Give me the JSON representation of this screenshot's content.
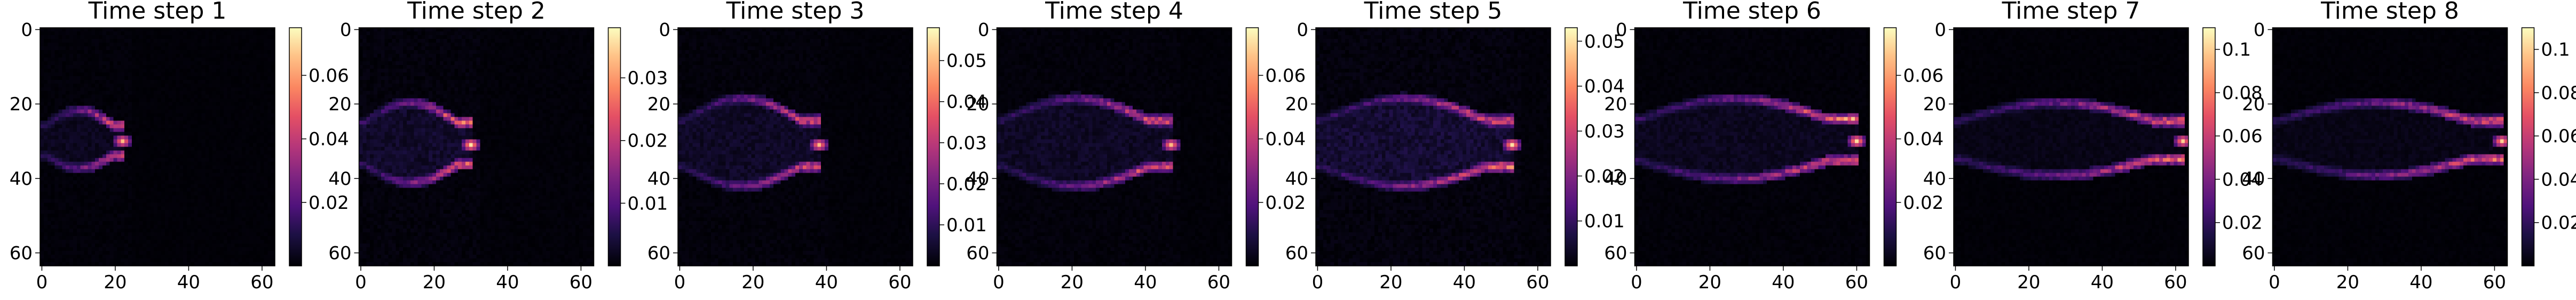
{
  "figure": {
    "background": "#ffffff",
    "colormap": "magma"
  },
  "chart_data": [
    {
      "type": "heatmap",
      "title": "Time step 1",
      "xlim": [
        0,
        63
      ],
      "ylim": [
        63,
        0
      ],
      "xticks": [
        0,
        20,
        40,
        60
      ],
      "yticks": [
        0,
        20,
        40,
        60
      ],
      "colorbar": {
        "range": [
          0,
          0.075
        ],
        "ticks": [
          0.02,
          0.04,
          0.06
        ]
      },
      "field": {
        "x_tip": 22,
        "y_center": 30,
        "spread": 8,
        "band_max": 0.065,
        "interior": 0.004
      }
    },
    {
      "type": "heatmap",
      "title": "Time step 2",
      "xlim": [
        0,
        63
      ],
      "ylim": [
        63,
        0
      ],
      "xticks": [
        0,
        20,
        40,
        60
      ],
      "yticks": [
        0,
        20,
        40,
        60
      ],
      "colorbar": {
        "range": [
          0,
          0.038
        ],
        "ticks": [
          0.01,
          0.02,
          0.03
        ]
      },
      "field": {
        "x_tip": 30,
        "y_center": 31,
        "spread": 11,
        "band_max": 0.036,
        "interior": 0.003
      }
    },
    {
      "type": "heatmap",
      "title": "Time step 3",
      "xlim": [
        0,
        63
      ],
      "ylim": [
        63,
        0
      ],
      "xticks": [
        0,
        20,
        40,
        60
      ],
      "yticks": [
        0,
        20,
        40,
        60
      ],
      "colorbar": {
        "range": [
          0,
          0.058
        ],
        "ticks": [
          0.01,
          0.02,
          0.03,
          0.04,
          0.05
        ]
      },
      "field": {
        "x_tip": 38,
        "y_center": 31,
        "spread": 12,
        "band_max": 0.05,
        "interior": 0.004
      }
    },
    {
      "type": "heatmap",
      "title": "Time step 4",
      "xlim": [
        0,
        63
      ],
      "ylim": [
        63,
        0
      ],
      "xticks": [
        0,
        20,
        40,
        60
      ],
      "yticks": [
        0,
        20,
        40,
        60
      ],
      "colorbar": {
        "range": [
          0,
          0.075
        ],
        "ticks": [
          0.02,
          0.04,
          0.06
        ]
      },
      "field": {
        "x_tip": 47,
        "y_center": 31,
        "spread": 12,
        "band_max": 0.065,
        "interior": 0.005
      }
    },
    {
      "type": "heatmap",
      "title": "Time step 5",
      "xlim": [
        0,
        63
      ],
      "ylim": [
        63,
        0
      ],
      "xticks": [
        0,
        20,
        40,
        60
      ],
      "yticks": [
        0,
        20,
        40,
        60
      ],
      "colorbar": {
        "range": [
          0,
          0.053
        ],
        "ticks": [
          0.01,
          0.02,
          0.03,
          0.04,
          0.05
        ]
      },
      "field": {
        "x_tip": 53,
        "y_center": 31,
        "spread": 12,
        "band_max": 0.05,
        "interior": 0.005
      }
    },
    {
      "type": "heatmap",
      "title": "Time step 6",
      "xlim": [
        0,
        63
      ],
      "ylim": [
        63,
        0
      ],
      "xticks": [
        0,
        20,
        40,
        60
      ],
      "yticks": [
        0,
        20,
        40,
        60
      ],
      "colorbar": {
        "range": [
          0,
          0.075
        ],
        "ticks": [
          0.02,
          0.04,
          0.06
        ]
      },
      "field": {
        "x_tip": 60,
        "y_center": 30,
        "spread": 11,
        "band_max": 0.07,
        "interior": 0.004
      }
    },
    {
      "type": "heatmap",
      "title": "Time step 7",
      "xlim": [
        0,
        63
      ],
      "ylim": [
        63,
        0
      ],
      "xticks": [
        0,
        20,
        40,
        60
      ],
      "yticks": [
        0,
        20,
        40,
        60
      ],
      "colorbar": {
        "range": [
          0,
          0.11
        ],
        "ticks": [
          0.02,
          0.04,
          0.06,
          0.08,
          0.1
        ]
      },
      "field": {
        "x_tip": 62,
        "y_center": 30,
        "spread": 10,
        "band_max": 0.1,
        "interior": 0.004
      }
    },
    {
      "type": "heatmap",
      "title": "Time step 8",
      "xlim": [
        0,
        63
      ],
      "ylim": [
        63,
        0
      ],
      "xticks": [
        0,
        20,
        40,
        60
      ],
      "yticks": [
        0,
        20,
        40,
        60
      ],
      "colorbar": {
        "range": [
          0,
          0.11
        ],
        "ticks": [
          0.02,
          0.04,
          0.06,
          0.08,
          0.1
        ]
      },
      "field": {
        "x_tip": 62,
        "y_center": 30,
        "spread": 10,
        "band_max": 0.1,
        "interior": 0.004
      }
    }
  ]
}
